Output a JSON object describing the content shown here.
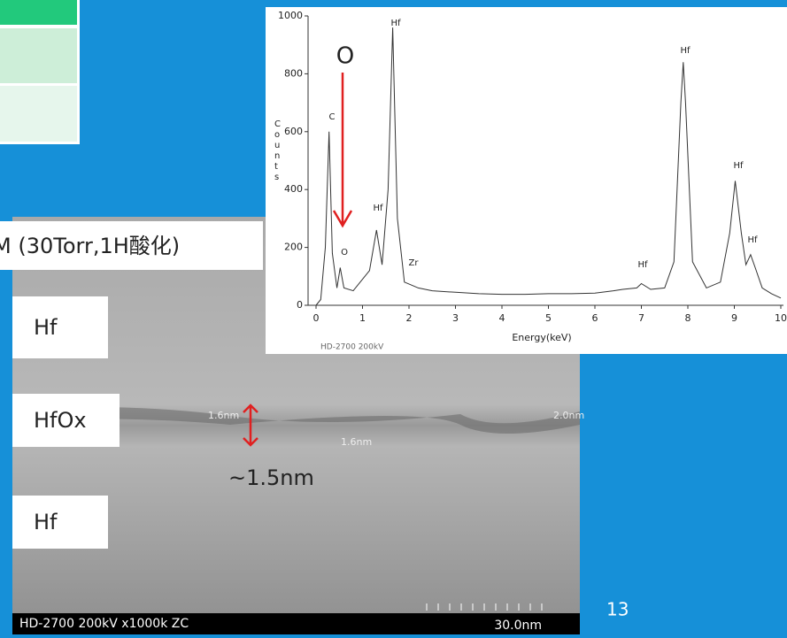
{
  "slide": {
    "label": "M (30Torr,1H酸化)",
    "layers": [
      "Hf",
      "HfOx",
      "Hf"
    ],
    "thickness": "~1.5nm",
    "measurements": [
      "1.6nm",
      "1.6nm",
      "2.0nm"
    ],
    "tem_footer": "HD-2700 200kV x1000k ZC",
    "scale_bar": "30.0nm",
    "page_number": "13"
  },
  "chart_data": {
    "type": "line",
    "y_label": "Counts",
    "x_label": "Energy(keV)",
    "footer": "HD-2700  200kV",
    "annotation": "O",
    "color": "#333333",
    "x": [
      0,
      0.1,
      0.2,
      0.28,
      0.35,
      0.45,
      0.52,
      0.6,
      0.8,
      1.0,
      1.15,
      1.3,
      1.42,
      1.55,
      1.65,
      1.75,
      1.9,
      2.05,
      2.2,
      2.5,
      3,
      3.5,
      4,
      4.5,
      5,
      5.5,
      6,
      6.4,
      6.6,
      6.9,
      7.0,
      7.2,
      7.5,
      7.7,
      7.85,
      7.9,
      7.95,
      8.1,
      8.4,
      8.7,
      8.9,
      9.02,
      9.15,
      9.25,
      9.35,
      9.45,
      9.6,
      9.8,
      10
    ],
    "values": [
      0,
      20,
      200,
      600,
      180,
      60,
      130,
      60,
      50,
      90,
      120,
      260,
      140,
      400,
      960,
      300,
      80,
      70,
      60,
      50,
      45,
      40,
      38,
      38,
      40,
      40,
      42,
      50,
      55,
      60,
      75,
      55,
      60,
      150,
      700,
      840,
      700,
      150,
      60,
      80,
      250,
      430,
      250,
      140,
      175,
      130,
      60,
      40,
      25
    ],
    "peak_labels": [
      "C",
      "O",
      "Hf",
      "Hf",
      "Zr",
      "Hf",
      "Hf",
      "Hf",
      "Hf"
    ],
    "xlim": [
      0,
      10
    ],
    "xticks": [
      0,
      1,
      2,
      3,
      4,
      5,
      6,
      7,
      8,
      9,
      10
    ],
    "ylim": [
      0,
      1000
    ],
    "yticks": [
      0,
      200,
      400,
      600,
      800,
      1000
    ]
  }
}
